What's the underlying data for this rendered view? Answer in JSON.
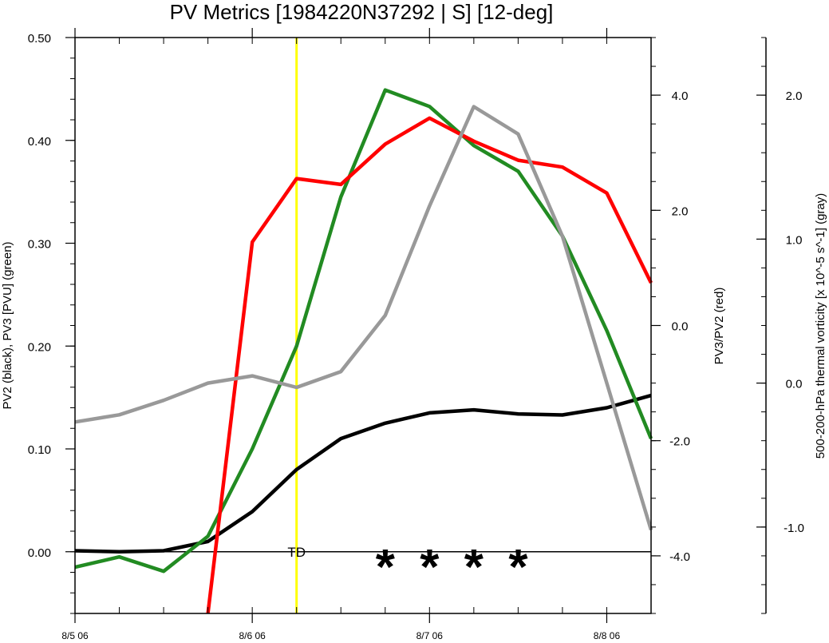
{
  "chart_data": {
    "type": "line",
    "title": "PV Metrics [1984220N37292 | S] [12-deg]",
    "x": [
      0,
      0.25,
      0.5,
      0.75,
      1.0,
      1.25,
      1.5,
      1.75,
      2.0,
      2.25,
      2.5,
      2.75,
      3.0,
      3.25
    ],
    "x_ticks": [
      {
        "value": 0,
        "label": "8/5 06"
      },
      {
        "value": 1,
        "label": "8/6 06"
      },
      {
        "value": 2,
        "label": "8/7 06"
      },
      {
        "value": 3,
        "label": "8/8 06"
      }
    ],
    "xlim": [
      0,
      3.25
    ],
    "axes": {
      "left": {
        "label": "PV2 (black), PV3 [PVU] (green)",
        "ylim": [
          -0.06,
          0.5
        ],
        "ticks": [
          {
            "value": 0.0,
            "label": "0.00"
          },
          {
            "value": 0.1,
            "label": "0.10"
          },
          {
            "value": 0.2,
            "label": "0.20"
          },
          {
            "value": 0.3,
            "label": "0.30"
          },
          {
            "value": 0.4,
            "label": "0.40"
          },
          {
            "value": 0.5,
            "label": "0.50"
          }
        ],
        "minor_step": 0.02
      },
      "right": {
        "label": "PV3/PV2 (red)",
        "ylim": [
          -5.0,
          5.0
        ],
        "ticks": [
          {
            "value": -4.0,
            "label": "-4.0"
          },
          {
            "value": -2.0,
            "label": "-2.0"
          },
          {
            "value": 0.0,
            "label": "0.0"
          },
          {
            "value": 2.0,
            "label": "2.0"
          },
          {
            "value": 4.0,
            "label": "4.0"
          }
        ],
        "minor_step": 0.5
      },
      "far_right": {
        "label": "500-200-hPa thermal vorticity [x 10^-5 s^-1] (gray)",
        "ylim": [
          -1.6,
          2.4
        ],
        "ticks": [
          {
            "value": -1.0,
            "label": "-1.0"
          },
          {
            "value": 0.0,
            "label": "0.0"
          },
          {
            "value": 1.0,
            "label": "1.0"
          },
          {
            "value": 2.0,
            "label": "2.0"
          }
        ],
        "minor_step": 0.2
      }
    },
    "series": [
      {
        "axis": "left",
        "color": "#000000",
        "values": [
          0.001,
          0.0,
          0.001,
          0.01,
          0.039,
          0.08,
          0.11,
          0.125,
          0.135,
          0.138,
          0.134,
          0.133,
          0.14,
          0.152
        ]
      },
      {
        "axis": "left",
        "color": "#228b22",
        "values": [
          -0.015,
          -0.005,
          -0.019,
          0.015,
          0.1,
          0.2,
          0.345,
          0.449,
          0.433,
          0.395,
          0.37,
          0.307,
          0.215,
          0.11
        ]
      },
      {
        "axis": "right",
        "color": "#ff0000",
        "values": [
          null,
          null,
          null,
          -5.0,
          1.45,
          2.55,
          2.45,
          3.15,
          3.6,
          3.2,
          2.87,
          2.75,
          2.3,
          0.74
        ]
      },
      {
        "axis": "far_right",
        "color": "#999999",
        "values": [
          -0.27,
          -0.22,
          -0.12,
          0.0,
          0.05,
          -0.03,
          0.08,
          0.47,
          1.23,
          1.92,
          1.73,
          1.02,
          0.0,
          -1.02
        ]
      }
    ],
    "vline": {
      "x": 1.25,
      "color": "#ffff00"
    },
    "annotations": {
      "td": {
        "text": "TD",
        "x": 1.25,
        "y": 0.0
      },
      "stars": {
        "text": "*",
        "x": [
          1.75,
          2.0,
          2.25,
          2.5
        ],
        "y": 0.0
      }
    },
    "grid": false,
    "legend": "none"
  }
}
